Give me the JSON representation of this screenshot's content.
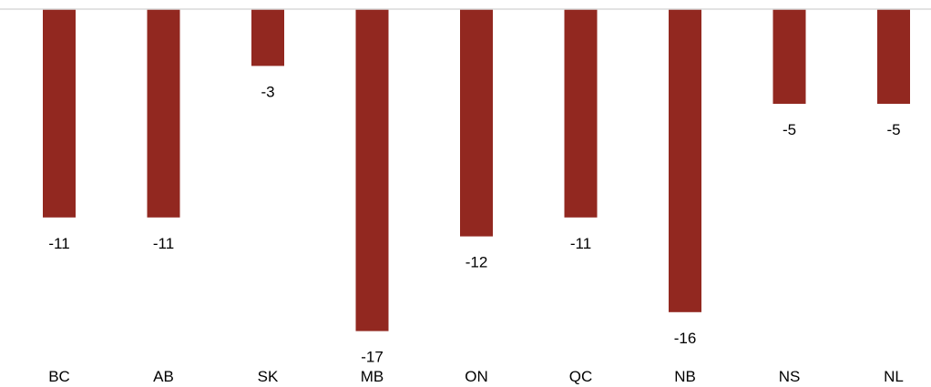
{
  "chart_data": {
    "type": "bar",
    "title": "",
    "xlabel": "",
    "ylabel": "",
    "categories": [
      "BC",
      "AB",
      "SK",
      "MB",
      "ON",
      "QC",
      "NB",
      "NS",
      "NL"
    ],
    "values": [
      -11,
      -11,
      -3,
      -17,
      -12,
      -11,
      -16,
      -5,
      -5
    ],
    "ylim": [
      -17,
      0
    ],
    "grid": false,
    "legend": "none",
    "bar_color": "#922820",
    "axis_color": "#d9d9d9",
    "data_labels": true
  }
}
